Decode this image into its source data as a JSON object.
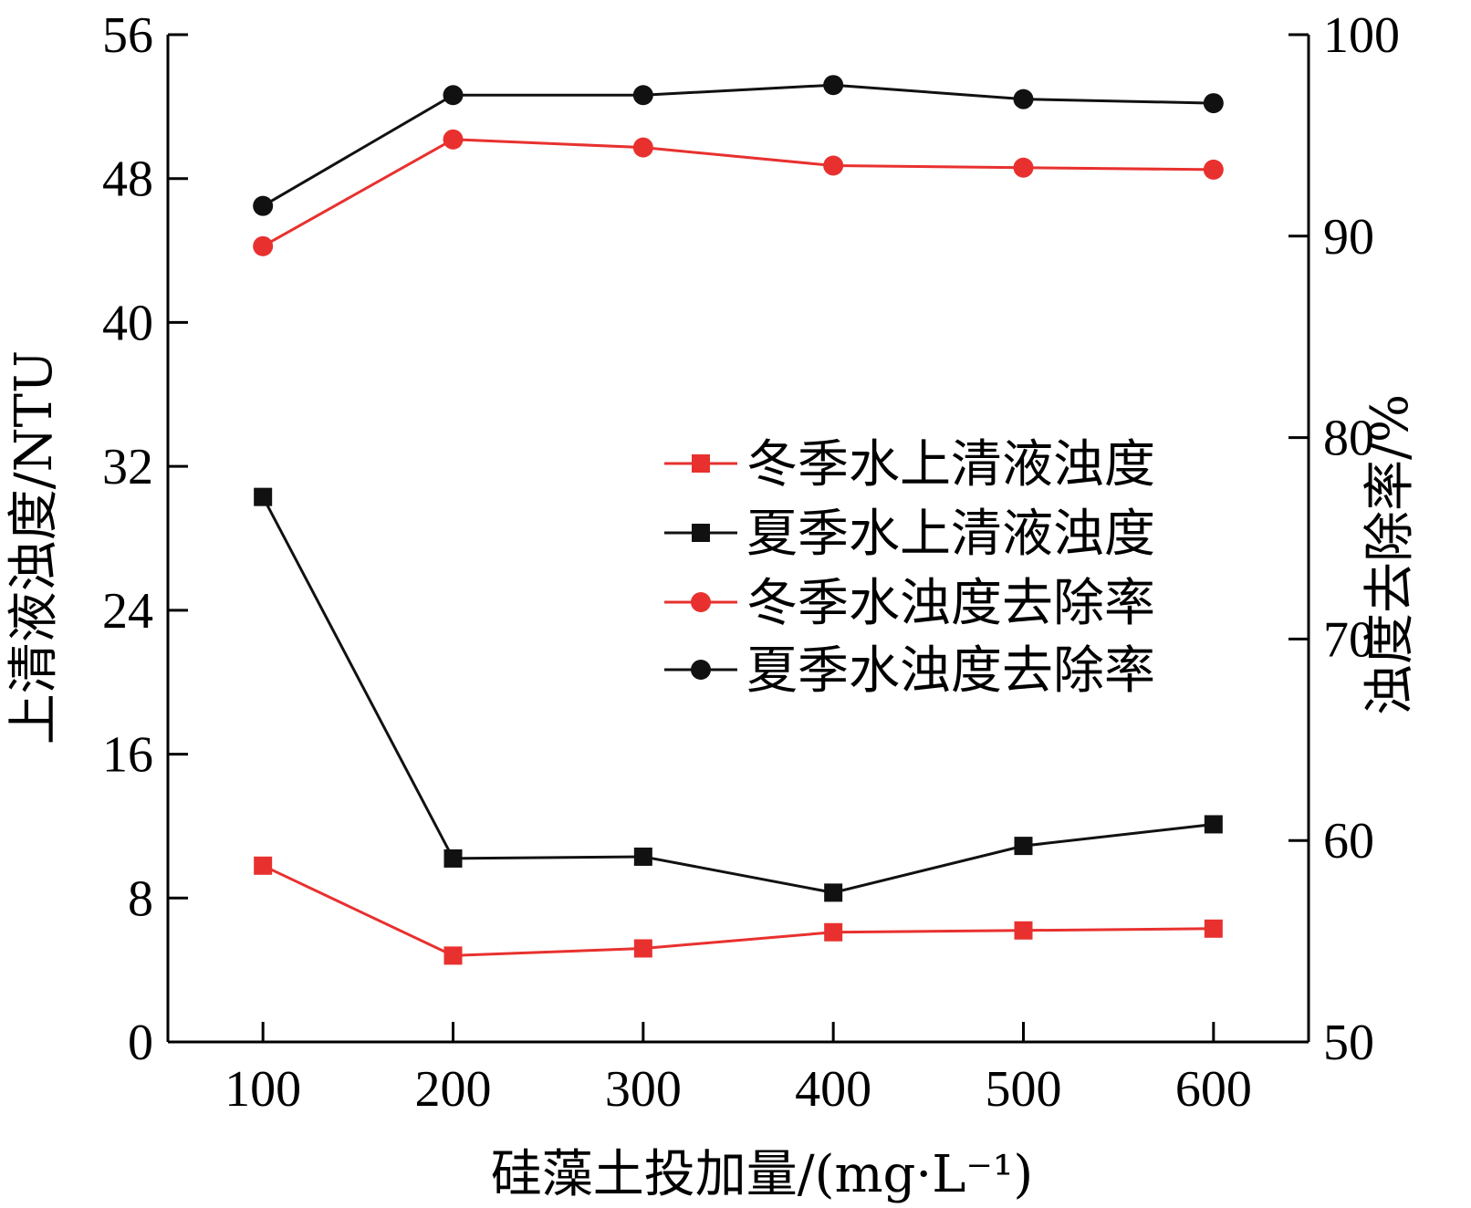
{
  "chart_data": {
    "type": "line",
    "x": [
      100,
      200,
      300,
      400,
      500,
      600
    ],
    "xlabel": "硅藻土投加量/(mg·L⁻¹)",
    "ylabel": "上清液浊度/NTU",
    "y2label": "浊度去除率/%",
    "xlim": [
      50,
      650
    ],
    "ylim": [
      0,
      56
    ],
    "y2lim": [
      50,
      100
    ],
    "xticks": [
      100,
      200,
      300,
      400,
      500,
      600
    ],
    "yticks": [
      0,
      8,
      16,
      24,
      32,
      40,
      48,
      56
    ],
    "y2ticks": [
      50,
      60,
      70,
      80,
      90,
      100
    ],
    "grid": false,
    "legend_position": "center-right",
    "series": [
      {
        "name": "冬季水上清液浊度",
        "axis": "left",
        "marker": "square",
        "color": "#e8312f",
        "values": [
          9.8,
          4.8,
          5.2,
          6.1,
          6.2,
          6.3
        ]
      },
      {
        "name": "夏季水上清液浊度",
        "axis": "left",
        "marker": "square",
        "color": "#111111",
        "values": [
          30.3,
          10.2,
          10.3,
          8.3,
          10.9,
          12.1
        ]
      },
      {
        "name": "冬季水浊度去除率",
        "axis": "right",
        "marker": "circle",
        "color": "#e8312f",
        "values": [
          89.5,
          94.8,
          94.4,
          93.5,
          93.4,
          93.3
        ]
      },
      {
        "name": "夏季水浊度去除率",
        "axis": "right",
        "marker": "circle",
        "color": "#111111",
        "values": [
          91.5,
          97.0,
          97.0,
          97.5,
          96.8,
          96.6
        ]
      }
    ]
  }
}
